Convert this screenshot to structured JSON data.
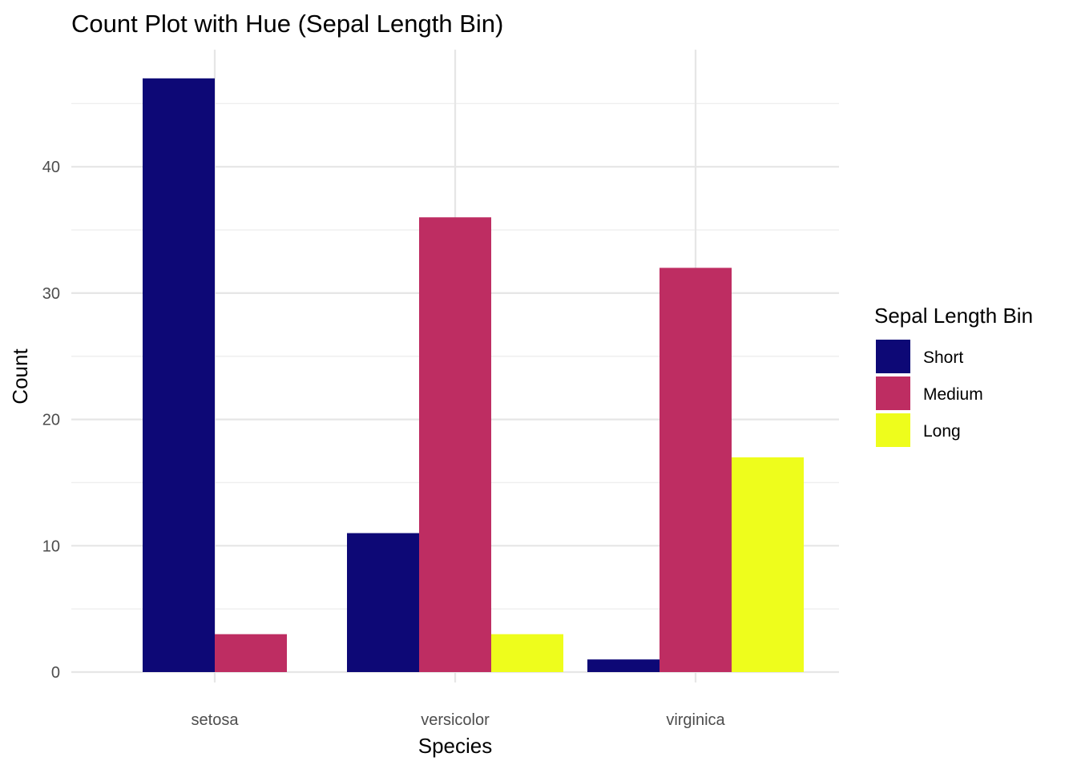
{
  "chart_data": {
    "type": "bar",
    "title": "Count Plot with Hue (Sepal Length Bin)",
    "xlabel": "Species",
    "ylabel": "Count",
    "categories": [
      "setosa",
      "versicolor",
      "virginica"
    ],
    "series": [
      {
        "name": "Short",
        "color": "#0d0876",
        "values": [
          47,
          11,
          1
        ]
      },
      {
        "name": "Medium",
        "color": "#be2d62",
        "values": [
          3,
          36,
          32
        ]
      },
      {
        "name": "Long",
        "color": "#eefd1c",
        "values": [
          0,
          3,
          17
        ]
      }
    ],
    "ylim": [
      0,
      49.4
    ],
    "yticks": [
      0,
      10,
      20,
      30,
      40
    ],
    "grid": true,
    "legend": {
      "title": "Sepal Length Bin",
      "position": "right"
    }
  }
}
